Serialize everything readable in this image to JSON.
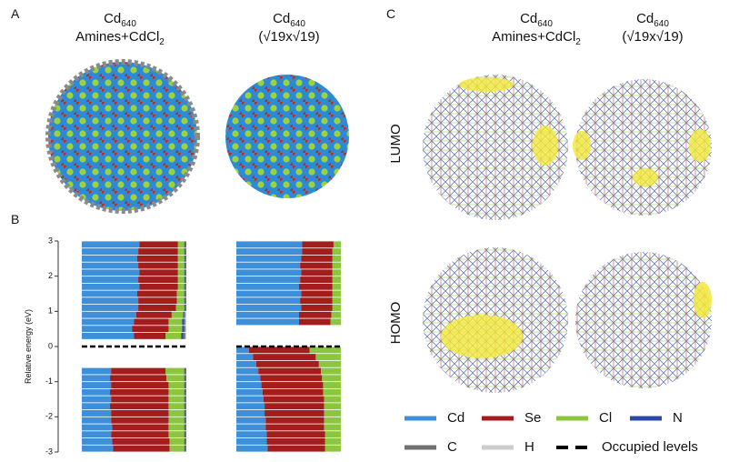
{
  "panel_labels": [
    "A",
    "B",
    "C"
  ],
  "structures": [
    {
      "formula": "Cd",
      "subscript": "640",
      "line2": "Amines+CdCl",
      "line2_sub": "2"
    },
    {
      "formula": "Cd",
      "subscript": "640",
      "line2": "(√19x√19)"
    }
  ],
  "orbitals": [
    "LUMO",
    "HOMO"
  ],
  "chart_data": {
    "type": "stacked-levels",
    "y_label": "Relative energy (eV)",
    "ylim": [
      -3,
      3
    ],
    "yticks": [
      -3,
      -2,
      -1,
      0,
      1,
      2,
      3
    ],
    "xlim": [
      0,
      100
    ],
    "occupied_level": 0,
    "occupied_label": "Occupied levels",
    "series": [
      {
        "name": "Cd",
        "color": "#3d8fd9"
      },
      {
        "name": "Se",
        "color": "#a31d1d"
      },
      {
        "name": "Cl",
        "color": "#8cc63f"
      },
      {
        "name": "N",
        "color": "#2b4aa8"
      },
      {
        "name": "C",
        "color": "#707070"
      },
      {
        "name": "H",
        "color": "#cccccc"
      }
    ],
    "columns": [
      {
        "energies": [
          0.3,
          0.5,
          0.7,
          0.9,
          1.1,
          1.3,
          1.5,
          1.7,
          1.9,
          2.1,
          2.3,
          2.5,
          2.7,
          2.9,
          -0.7,
          -0.9,
          -1.1,
          -1.3,
          -1.5,
          -1.7,
          -1.9,
          -2.1,
          -2.3,
          -2.5,
          -2.7,
          -2.9
        ],
        "fractions": [
          [
            50,
            30,
            15,
            2,
            2,
            1
          ],
          [
            48,
            35,
            13,
            2,
            1,
            1
          ],
          [
            50,
            33,
            13,
            2,
            1,
            1
          ],
          [
            52,
            34,
            11,
            1,
            1,
            1
          ],
          [
            54,
            36,
            8,
            1,
            1,
            0
          ],
          [
            54,
            37,
            7,
            1,
            1,
            0
          ],
          [
            53,
            38,
            7,
            1,
            1,
            0
          ],
          [
            55,
            37,
            6,
            1,
            1,
            0
          ],
          [
            54,
            38,
            6,
            1,
            1,
            0
          ],
          [
            55,
            37,
            6,
            1,
            1,
            0
          ],
          [
            54,
            38,
            6,
            1,
            1,
            0
          ],
          [
            53,
            39,
            6,
            1,
            1,
            0
          ],
          [
            54,
            38,
            6,
            1,
            1,
            0
          ],
          [
            55,
            37,
            6,
            1,
            1,
            0
          ],
          [
            28,
            52,
            18,
            1,
            1,
            0
          ],
          [
            27,
            54,
            17,
            1,
            1,
            0
          ],
          [
            28,
            55,
            15,
            1,
            1,
            0
          ],
          [
            27,
            56,
            15,
            1,
            1,
            0
          ],
          [
            28,
            55,
            15,
            1,
            1,
            0
          ],
          [
            27,
            56,
            15,
            1,
            1,
            0
          ],
          [
            28,
            55,
            15,
            1,
            1,
            0
          ],
          [
            28,
            55,
            15,
            1,
            1,
            0
          ],
          [
            29,
            54,
            15,
            1,
            1,
            0
          ],
          [
            28,
            55,
            15,
            1,
            1,
            0
          ],
          [
            29,
            55,
            14,
            1,
            1,
            0
          ],
          [
            30,
            54,
            14,
            1,
            1,
            0
          ]
        ]
      },
      {
        "energies": [
          0.7,
          0.9,
          1.1,
          1.3,
          1.5,
          1.7,
          1.9,
          2.1,
          2.3,
          2.5,
          2.7,
          2.9,
          -0.1,
          -0.3,
          -0.5,
          -0.7,
          -0.9,
          -1.1,
          -1.3,
          -1.5,
          -1.7,
          -1.9,
          -2.1,
          -2.3,
          -2.5,
          -2.7,
          -2.9
        ],
        "fractions": [
          [
            60,
            30,
            10,
            0,
            0,
            0
          ],
          [
            60,
            31,
            9,
            0,
            0,
            0
          ],
          [
            62,
            30,
            8,
            0,
            0,
            0
          ],
          [
            61,
            31,
            8,
            0,
            0,
            0
          ],
          [
            62,
            30,
            8,
            0,
            0,
            0
          ],
          [
            60,
            32,
            8,
            0,
            0,
            0
          ],
          [
            61,
            31,
            8,
            0,
            0,
            0
          ],
          [
            62,
            30,
            8,
            0,
            0,
            0
          ],
          [
            61,
            31,
            8,
            0,
            0,
            0
          ],
          [
            62,
            30,
            8,
            0,
            0,
            0
          ],
          [
            63,
            29,
            8,
            0,
            0,
            0
          ],
          [
            63,
            30,
            7,
            0,
            0,
            0
          ],
          [
            12,
            58,
            30,
            0,
            0,
            0
          ],
          [
            16,
            60,
            24,
            0,
            0,
            0
          ],
          [
            19,
            60,
            21,
            0,
            0,
            0
          ],
          [
            21,
            60,
            19,
            0,
            0,
            0
          ],
          [
            23,
            59,
            18,
            0,
            0,
            0
          ],
          [
            24,
            59,
            17,
            0,
            0,
            0
          ],
          [
            25,
            58,
            17,
            0,
            0,
            0
          ],
          [
            26,
            58,
            16,
            0,
            0,
            0
          ],
          [
            27,
            57,
            16,
            0,
            0,
            0
          ],
          [
            27,
            57,
            16,
            0,
            0,
            0
          ],
          [
            28,
            56,
            16,
            0,
            0,
            0
          ],
          [
            28,
            56,
            16,
            0,
            0,
            0
          ],
          [
            29,
            56,
            15,
            0,
            0,
            0
          ],
          [
            29,
            56,
            15,
            0,
            0,
            0
          ],
          [
            30,
            55,
            15,
            0,
            0,
            0
          ]
        ]
      }
    ]
  }
}
